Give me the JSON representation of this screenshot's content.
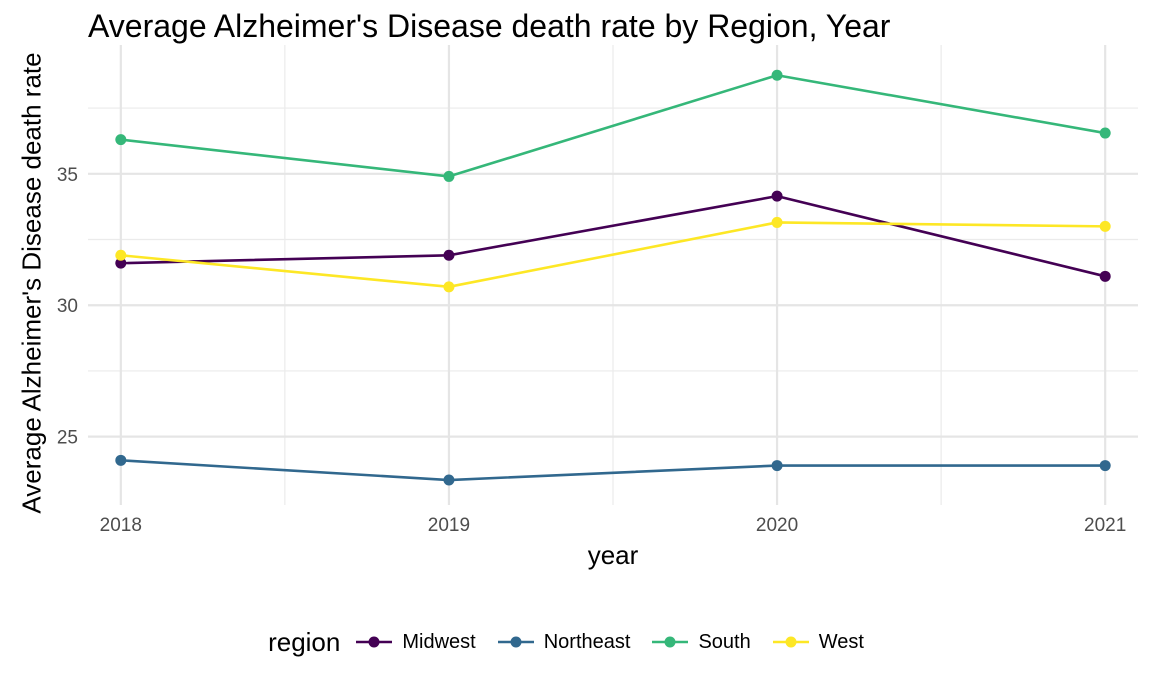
{
  "chart_data": {
    "type": "line",
    "title": "Average Alzheimer's Disease death rate by Region, Year",
    "xlabel": "year",
    "ylabel": "Average Alzheimer's Disease death rate",
    "x": [
      "2018",
      "2019",
      "2020",
      "2021"
    ],
    "xlim": [
      2017.9,
      2021.1
    ],
    "ylim": [
      22.4,
      39.9
    ],
    "yticks": [
      25,
      30,
      35
    ],
    "grid": true,
    "legend": {
      "title": "region",
      "position": "bottom"
    },
    "series": [
      {
        "name": "Midwest",
        "color": "#440154",
        "values": [
          31.6,
          31.9,
          34.15,
          31.1
        ]
      },
      {
        "name": "Northeast",
        "color": "#31688E",
        "values": [
          24.1,
          23.35,
          23.9,
          23.9
        ]
      },
      {
        "name": "South",
        "color": "#35B779",
        "values": [
          36.3,
          34.9,
          38.75,
          36.55
        ]
      },
      {
        "name": "West",
        "color": "#FDE725",
        "values": [
          31.9,
          30.7,
          33.15,
          33.0
        ]
      }
    ]
  }
}
